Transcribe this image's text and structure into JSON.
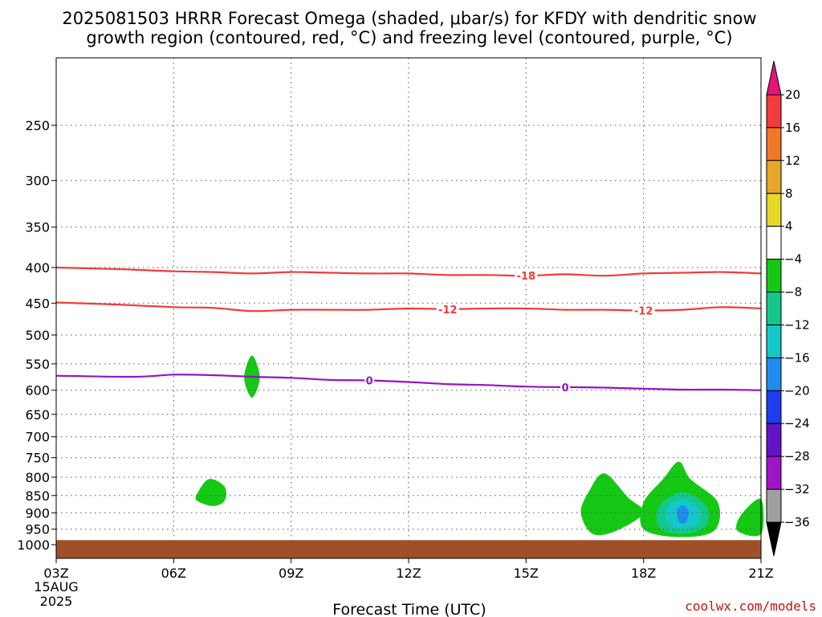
{
  "chart_data": {
    "type": "heatmap",
    "title_lines": [
      "2025081503 HRRR Forecast Omega (shaded, μbar/s) for KFDY with dendritic snow",
      "growth region (contoured, red, °C) and freezing level (contoured, purple, °C)"
    ],
    "xlabel": "Forecast Time (UTC)",
    "x_ticks": [
      "03Z",
      "06Z",
      "09Z",
      "12Z",
      "15Z",
      "18Z",
      "21Z"
    ],
    "x_tick_hours": [
      3,
      6,
      9,
      12,
      15,
      18,
      21
    ],
    "x_date_line1": "15AUG",
    "x_date_line2": "2025",
    "xlim": [
      3,
      21
    ],
    "y_ticks": [
      250,
      300,
      350,
      400,
      450,
      500,
      550,
      600,
      650,
      700,
      750,
      800,
      850,
      900,
      950,
      1000
    ],
    "ylim": [
      200,
      1000
    ],
    "y_scale": "log-pressure",
    "grid": true,
    "colorbar": {
      "unit": "μbar/s",
      "labels": [
        20,
        16,
        12,
        8,
        4,
        -4,
        -8,
        -12,
        -16,
        -20,
        -24,
        -28,
        -32,
        -36
      ],
      "bands": [
        {
          "lo": 16,
          "hi": 20,
          "color": "#f03c3c"
        },
        {
          "lo": 12,
          "hi": 16,
          "color": "#f07828"
        },
        {
          "lo": 8,
          "hi": 12,
          "color": "#e6a82a"
        },
        {
          "lo": 4,
          "hi": 8,
          "color": "#e8d828"
        },
        {
          "lo": -4,
          "hi": 4,
          "color": "#ffffff"
        },
        {
          "lo": -8,
          "hi": -4,
          "color": "#14c814"
        },
        {
          "lo": -12,
          "hi": -8,
          "color": "#14c88c"
        },
        {
          "lo": -16,
          "hi": -12,
          "color": "#14c8c8"
        },
        {
          "lo": -20,
          "hi": -16,
          "color": "#1e8cf0"
        },
        {
          "lo": -24,
          "hi": -20,
          "color": "#1e3cf0"
        },
        {
          "lo": -28,
          "hi": -24,
          "color": "#6414c8"
        },
        {
          "lo": -32,
          "hi": -28,
          "color": "#a014c8"
        },
        {
          "lo": -36,
          "hi": -32,
          "color": "#a0a0a0"
        }
      ],
      "top_arrow_color": "#e6147a",
      "bottom_arrow_color": "#000000"
    },
    "contours": [
      {
        "name": "-18",
        "color": "#f03c3c",
        "kind": "dendritic",
        "label": "-18",
        "label_at_hours": [
          15.0
        ],
        "points": [
          [
            3,
            400
          ],
          [
            4.5,
            402
          ],
          [
            6,
            405
          ],
          [
            7,
            406
          ],
          [
            8,
            408
          ],
          [
            9,
            406
          ],
          [
            10,
            407
          ],
          [
            11,
            408
          ],
          [
            12,
            408
          ],
          [
            13,
            410
          ],
          [
            14,
            410
          ],
          [
            15,
            411
          ],
          [
            16,
            409
          ],
          [
            17,
            411
          ],
          [
            18,
            408
          ],
          [
            19,
            407
          ],
          [
            20,
            406
          ],
          [
            21,
            408
          ]
        ]
      },
      {
        "name": "-12",
        "color": "#f03c3c",
        "kind": "dendritic",
        "label": "-12",
        "label_at_hours": [
          13.0,
          18.0
        ],
        "points": [
          [
            3,
            449
          ],
          [
            4.5,
            452
          ],
          [
            6,
            456
          ],
          [
            7,
            457
          ],
          [
            8,
            462
          ],
          [
            9,
            460
          ],
          [
            10,
            460
          ],
          [
            11,
            460
          ],
          [
            12,
            458
          ],
          [
            13,
            459
          ],
          [
            14,
            458
          ],
          [
            15,
            458
          ],
          [
            16,
            460
          ],
          [
            17,
            460
          ],
          [
            18,
            461
          ],
          [
            19,
            460
          ],
          [
            20,
            456
          ],
          [
            21,
            458
          ]
        ]
      },
      {
        "name": "0",
        "color": "#9612c8",
        "kind": "freezing-level",
        "label": "0",
        "label_at_hours": [
          11.0,
          16.0
        ],
        "points": [
          [
            3,
            572
          ],
          [
            5,
            574
          ],
          [
            6,
            570
          ],
          [
            7,
            571
          ],
          [
            8,
            574
          ],
          [
            9,
            576
          ],
          [
            10,
            580
          ],
          [
            11,
            581
          ],
          [
            12,
            584
          ],
          [
            13,
            588
          ],
          [
            14,
            590
          ],
          [
            15,
            593
          ],
          [
            16,
            594
          ],
          [
            17,
            595
          ],
          [
            18,
            597
          ],
          [
            19,
            599
          ],
          [
            20,
            599
          ],
          [
            21,
            600
          ]
        ]
      }
    ],
    "shaded_regions": [
      {
        "name": "omega-blob-08z-575mb",
        "color": "#14c814",
        "value_range": [
          -8,
          -4
        ],
        "outline": [
          [
            8.0,
            535
          ],
          [
            8.2,
            575
          ],
          [
            8.0,
            615
          ],
          [
            7.8,
            575
          ]
        ]
      },
      {
        "name": "omega-blob-07z-850mb",
        "color": "#14c814",
        "value_range": [
          -8,
          -4
        ],
        "outline": [
          [
            6.6,
            845
          ],
          [
            6.9,
            805
          ],
          [
            7.3,
            825
          ],
          [
            7.3,
            865
          ],
          [
            7.0,
            880
          ],
          [
            6.6,
            865
          ]
        ]
      },
      {
        "name": "omega-blob-17z-880mb",
        "color": "#14c814",
        "value_range": [
          -8,
          -4
        ],
        "outline": [
          [
            17.0,
            790
          ],
          [
            17.6,
            855
          ],
          [
            18.0,
            900
          ],
          [
            17.3,
            955
          ],
          [
            16.7,
            965
          ],
          [
            16.4,
            900
          ],
          [
            16.6,
            840
          ]
        ]
      },
      {
        "name": "omega-blob-19z-880mb",
        "color": "#14c814",
        "value_range": [
          -8,
          -4
        ],
        "outline": [
          [
            18.9,
            760
          ],
          [
            19.2,
            805
          ],
          [
            19.9,
            870
          ],
          [
            19.8,
            955
          ],
          [
            18.9,
            975
          ],
          [
            18.0,
            950
          ],
          [
            18.0,
            870
          ],
          [
            18.5,
            805
          ]
        ]
      },
      {
        "name": "omega-core-19z-900mb",
        "color": "#14c88c",
        "value_range": [
          -12,
          -8
        ],
        "outline": [
          [
            19.0,
            840
          ],
          [
            19.6,
            880
          ],
          [
            19.6,
            940
          ],
          [
            19.0,
            965
          ],
          [
            18.4,
            945
          ],
          [
            18.4,
            880
          ]
        ]
      },
      {
        "name": "omega-core2-19z-900mb",
        "color": "#14c8c8",
        "value_range": [
          -16,
          -12
        ],
        "outline": [
          [
            19.0,
            860
          ],
          [
            19.4,
            885
          ],
          [
            19.4,
            930
          ],
          [
            19.0,
            950
          ],
          [
            18.6,
            930
          ],
          [
            18.6,
            885
          ]
        ]
      },
      {
        "name": "omega-core3-19z-900mb",
        "color": "#1e8cf0",
        "value_range": [
          -20,
          -16
        ],
        "outline": [
          [
            19.0,
            878
          ],
          [
            19.15,
            895
          ],
          [
            19.1,
            925
          ],
          [
            19.0,
            932
          ],
          [
            18.9,
            925
          ],
          [
            18.85,
            895
          ]
        ]
      },
      {
        "name": "omega-blob-21z-910mb",
        "color": "#14c814",
        "value_range": [
          -8,
          -4
        ],
        "outline": [
          [
            21.0,
            860
          ],
          [
            21.0,
            965
          ],
          [
            20.4,
            955
          ],
          [
            20.5,
            905
          ]
        ]
      }
    ],
    "terrain": {
      "color": "#a05028",
      "surface_pressure": 985
    }
  },
  "credit": "coolwx.com/models"
}
